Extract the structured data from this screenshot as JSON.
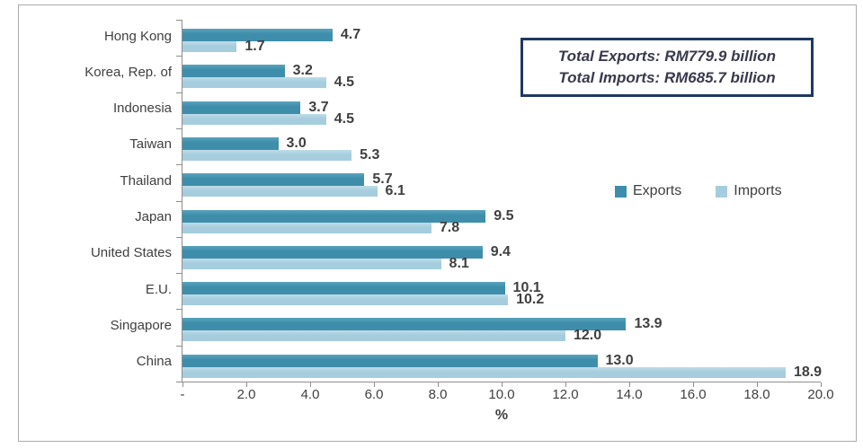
{
  "chart_data": {
    "type": "bar",
    "orientation": "horizontal",
    "categories": [
      "Hong Kong",
      "Korea, Rep. of",
      "Indonesia",
      "Taiwan",
      "Thailand",
      "Japan",
      "United States",
      "E.U.",
      "Singapore",
      "China"
    ],
    "series": [
      {
        "name": "Exports",
        "color": "#3E8EAB",
        "values": [
          4.7,
          3.2,
          3.7,
          3.0,
          5.7,
          9.5,
          9.4,
          10.1,
          13.9,
          13.0
        ]
      },
      {
        "name": "Imports",
        "color": "#A5CDDD",
        "values": [
          1.7,
          4.5,
          4.5,
          5.3,
          6.1,
          7.8,
          8.1,
          10.2,
          12.0,
          18.9
        ]
      }
    ],
    "xlabel": "%",
    "xlim": [
      0,
      20
    ],
    "x_ticks": [
      "-",
      "2.0",
      "4.0",
      "6.0",
      "8.0",
      "10.0",
      "12.0",
      "14.0",
      "16.0",
      "18.0",
      "20.0"
    ],
    "grid": false,
    "legend_position": "middle-right"
  },
  "annotation_box": {
    "line1": "Total Exports: RM779.9 billion",
    "line2": "Total Imports: RM685.7 billion"
  },
  "colors": {
    "exports": "#3E8EAB",
    "exports_gradient_top": "#5AA3BC",
    "imports": "#A5CDDD",
    "imports_gradient_top": "#BFDCE8",
    "frame_border": "#ABABAB",
    "axis": "#8E8E8E",
    "text": "#3F3F3F",
    "totals_border": "#1F3864",
    "totals_text": "#39394D"
  }
}
